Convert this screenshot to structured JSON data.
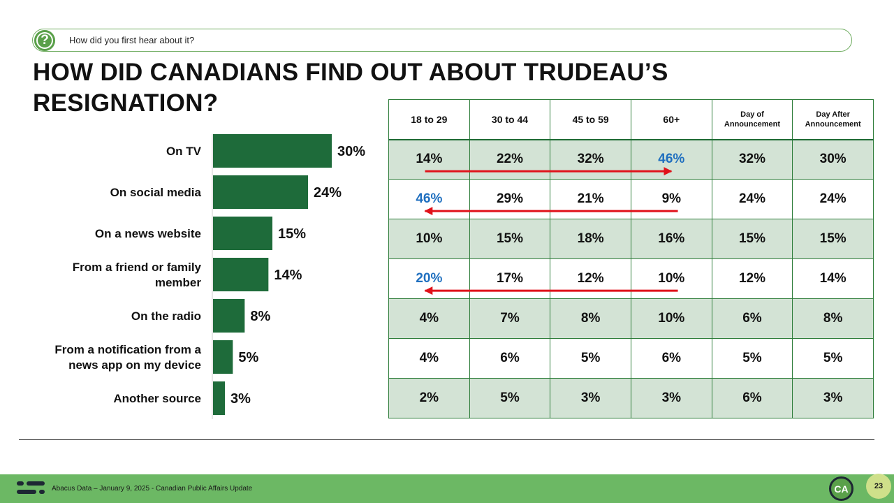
{
  "question": {
    "icon": "question-mark-icon",
    "text": "How did you first hear about it?"
  },
  "title": "HOW DID CANADIANS FIND OUT ABOUT TRUDEAU’S RESIGNATION?",
  "chart_data": {
    "type": "bar",
    "orientation": "horizontal",
    "categories": [
      [
        "On TV"
      ],
      [
        "On social media"
      ],
      [
        "On a news website"
      ],
      [
        "From a friend or family",
        "member"
      ],
      [
        "On the radio"
      ],
      [
        "From a notification from a",
        "news app on my device"
      ],
      [
        "Another source"
      ]
    ],
    "values": [
      30,
      24,
      15,
      14,
      8,
      5,
      3
    ],
    "value_labels": [
      "30%",
      "24%",
      "15%",
      "14%",
      "8%",
      "5%",
      "3%"
    ],
    "xlim": [
      0,
      30
    ],
    "bar_color": "#1e6b3a",
    "grid": false
  },
  "table": {
    "headers": [
      [
        "18 to 29"
      ],
      [
        "30 to 44"
      ],
      [
        "45 to 59"
      ],
      [
        "60+"
      ],
      [
        "Day of",
        "Announcement"
      ],
      [
        "Day After",
        "Announcement"
      ]
    ],
    "rows": [
      [
        "14%",
        "22%",
        "32%",
        "46%",
        "32%",
        "30%"
      ],
      [
        "46%",
        "29%",
        "21%",
        "9%",
        "24%",
        "24%"
      ],
      [
        "10%",
        "15%",
        "18%",
        "16%",
        "15%",
        "15%"
      ],
      [
        "20%",
        "17%",
        "12%",
        "10%",
        "12%",
        "14%"
      ],
      [
        "4%",
        "7%",
        "8%",
        "10%",
        "6%",
        "8%"
      ],
      [
        "4%",
        "6%",
        "5%",
        "6%",
        "5%",
        "5%"
      ],
      [
        "2%",
        "5%",
        "3%",
        "3%",
        "6%",
        "3%"
      ]
    ],
    "highlights": [
      {
        "row": 0,
        "col": 3
      },
      {
        "row": 1,
        "col": 0
      },
      {
        "row": 3,
        "col": 0
      }
    ],
    "highlight_color": "#1f6fbf",
    "arrows": [
      {
        "row": 0,
        "from_col": 0,
        "to_col": 3,
        "direction": "right"
      },
      {
        "row": 1,
        "from_col": 3,
        "to_col": 0,
        "direction": "left"
      },
      {
        "row": 3,
        "from_col": 3,
        "to_col": 0,
        "direction": "left"
      }
    ],
    "arrow_color": "#e0121a",
    "stripe_color": "#d3e3d5",
    "border_color": "#2e7d3a"
  },
  "footer": {
    "logo": "abacus-logo-icon",
    "text": "Abacus Data – January 9, 2025 - Canadian Public Affairs Update",
    "badge": "CA",
    "page_number": "23"
  }
}
